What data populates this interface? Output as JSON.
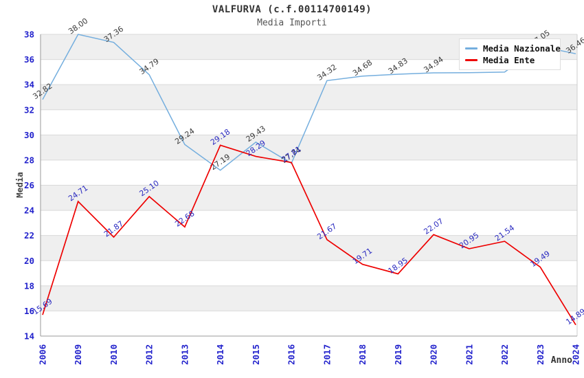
{
  "chart": {
    "title": "VALFURVA (c.f.00114700149)",
    "subtitle": "Media Importi"
  },
  "chart_data": {
    "type": "line",
    "title": "VALFURVA (c.f.00114700149)",
    "subtitle": "Media Importi",
    "categories": [
      "2006",
      "2009",
      "2010",
      "2012",
      "2013",
      "2014",
      "2015",
      "2016",
      "2017",
      "2018",
      "2019",
      "2020",
      "2021",
      "2022",
      "2023",
      "2024"
    ],
    "series": [
      {
        "name": "Media Nazionale",
        "color": "#74aede",
        "label_color": "#3a3a3a",
        "values": [
          32.82,
          38.0,
          37.36,
          34.79,
          29.24,
          27.19,
          29.43,
          27.74,
          34.32,
          34.68,
          34.83,
          34.94,
          34.95,
          35.0,
          37.05,
          36.46
        ],
        "labels": [
          "32.82",
          "38.00",
          "37.36",
          "34.79",
          "29.24",
          "27.19",
          "29.43",
          "27.74",
          "34.32",
          "34.68",
          "34.83",
          "34.94",
          null,
          null,
          "37.05",
          "36.46"
        ]
      },
      {
        "name": "Media Ente",
        "color": "#ee0000",
        "label_color": "#2a2ac0",
        "values": [
          15.69,
          24.71,
          21.87,
          25.1,
          22.68,
          29.18,
          28.29,
          27.81,
          21.67,
          19.71,
          18.95,
          22.07,
          20.95,
          21.54,
          19.49,
          14.89
        ],
        "labels": [
          "15.69",
          "24.71",
          "21.87",
          "25.10",
          "22.68",
          "29.18",
          "28.29",
          "27.81",
          "21.67",
          "19.71",
          "18.95",
          "22.07",
          "20.95",
          "21.54",
          "19.49",
          "14.89"
        ]
      }
    ],
    "xlabel": "Anno",
    "ylabel": "Media",
    "ylim": [
      14,
      38
    ],
    "ytick_step": 2,
    "grid": true,
    "gray_bands": [
      [
        16,
        18
      ],
      [
        20,
        22
      ],
      [
        24,
        26
      ],
      [
        28,
        30
      ],
      [
        32,
        34
      ],
      [
        36,
        38
      ]
    ],
    "legend_position": "top-right",
    "colors": {
      "band": "#efefef",
      "grid": "#d9d9d9",
      "axis": "#999999",
      "outer_border": "#cccccc",
      "tick_label": "#2222cc",
      "axis_title": "#444444"
    }
  }
}
